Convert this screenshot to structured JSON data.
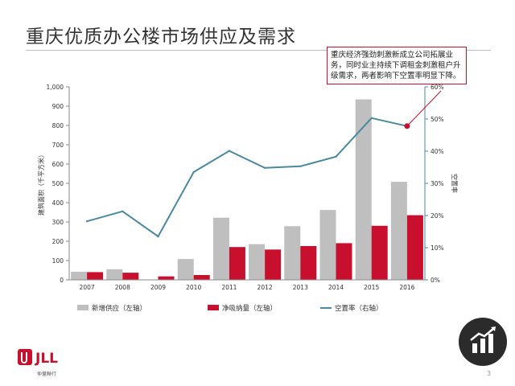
{
  "page": {
    "title": "重庆优质办公楼市场供应及需求",
    "callout": "重庆经济强劲刺激新成立公司拓展业务，同时业主持续下调租金刺激租户升级需求，两者影响下空置率明显下降。",
    "logo_text": "JLL",
    "logo_subtext": "仲量聯行",
    "page_number": "3"
  },
  "colors": {
    "supply": "#bfbfbf",
    "absorption": "#c8102e",
    "vacancy": "#4a8aa0",
    "logo": "#c8102e"
  },
  "icons": {
    "chart": "bar-chart-growth-icon"
  },
  "chart_data": {
    "type": "bar",
    "categories": [
      "2007",
      "2008",
      "2009",
      "2010",
      "2011",
      "2012",
      "2013",
      "2014",
      "2015",
      "2016"
    ],
    "series": [
      {
        "name": "新增供应（左轴）",
        "type": "bar",
        "axis": "left",
        "values": [
          42,
          55,
          0,
          108,
          322,
          185,
          278,
          362,
          935,
          508
        ]
      },
      {
        "name": "净吸纳量（左轴）",
        "type": "bar",
        "axis": "left",
        "values": [
          40,
          37,
          18,
          25,
          170,
          157,
          175,
          190,
          280,
          335
        ]
      },
      {
        "name": "空置率（右轴）",
        "type": "line",
        "axis": "right",
        "values": [
          18.2,
          21.3,
          13.5,
          33.5,
          40.1,
          34.8,
          35.3,
          38.3,
          50.3,
          47.8
        ]
      }
    ],
    "ylabel": "建筑面积（千平方米）",
    "y2label": "空置率",
    "ylim": [
      0,
      1000
    ],
    "y2lim": [
      0,
      60
    ],
    "yticks": [
      "0",
      "100",
      "200",
      "300",
      "400",
      "500",
      "600",
      "700",
      "800",
      "900",
      "1,000"
    ],
    "y2ticks": [
      "0%",
      "10%",
      "20%",
      "30%",
      "40%",
      "50%",
      "60%"
    ],
    "legend": [
      "新增供应（左轴）",
      "净吸纳量（左轴）",
      "空置率（右轴）"
    ],
    "legend_position": "bottom",
    "highlight_point": {
      "series": "空置率（右轴）",
      "category": "2016"
    }
  }
}
